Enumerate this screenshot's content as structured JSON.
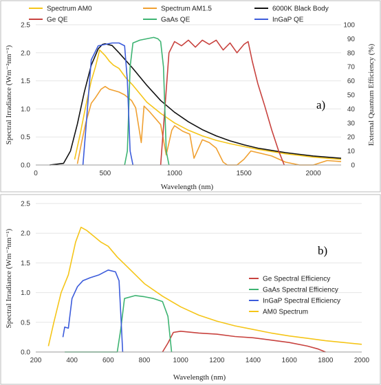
{
  "chart_data": [
    {
      "type": "line",
      "panel_label": "a)",
      "xlabel": "Wavelength  (nm)",
      "ylabel": "Spectral  Irradiance  (Wm⁻²nm⁻¹)",
      "ylabel_right": "External  Quantum  Efficiency  (%)",
      "xlim": [
        0,
        2200
      ],
      "ylim": [
        0,
        2.5
      ],
      "ylim_right": [
        0,
        100
      ],
      "x_ticks": [
        "0",
        "500",
        "1000",
        "1500",
        "2000"
      ],
      "y_ticks": [
        "0.0",
        "0.5",
        "1.0",
        "1.5",
        "2.0",
        "2.5"
      ],
      "y_ticks_right": [
        "0",
        "10",
        "20",
        "30",
        "40",
        "50",
        "60",
        "70",
        "80",
        "90",
        "100"
      ],
      "legend_position": "top",
      "series": [
        {
          "name": "Spectrum AM0",
          "color": "#f5c518",
          "axis": "left",
          "x": [
            280,
            320,
            360,
            400,
            430,
            460,
            480,
            500,
            530,
            560,
            600,
            650,
            700,
            800,
            900,
            1000,
            1100,
            1200,
            1300,
            1400,
            1500,
            1600,
            1700,
            1800,
            1900,
            2000,
            2100,
            2200
          ],
          "y": [
            0.1,
            0.55,
            1.05,
            1.5,
            1.75,
            2.05,
            2.0,
            1.95,
            1.85,
            1.78,
            1.72,
            1.55,
            1.42,
            1.12,
            0.92,
            0.75,
            0.62,
            0.52,
            0.44,
            0.38,
            0.33,
            0.28,
            0.24,
            0.2,
            0.17,
            0.14,
            0.12,
            0.1
          ]
        },
        {
          "name": "Spectrum AM1.5",
          "color": "#f0a030",
          "axis": "left",
          "x": [
            300,
            330,
            360,
            400,
            430,
            470,
            500,
            530,
            560,
            600,
            640,
            690,
            720,
            760,
            780,
            820,
            900,
            940,
            980,
            1000,
            1060,
            1110,
            1140,
            1200,
            1250,
            1300,
            1350,
            1380,
            1450,
            1500,
            1550,
            1600,
            1700,
            1800,
            1900,
            2000,
            2100,
            2200
          ],
          "y": [
            0.02,
            0.4,
            0.75,
            1.1,
            1.2,
            1.35,
            1.4,
            1.35,
            1.33,
            1.3,
            1.25,
            1.15,
            1.02,
            0.4,
            1.05,
            0.95,
            0.72,
            0.18,
            0.62,
            0.7,
            0.6,
            0.55,
            0.12,
            0.45,
            0.4,
            0.3,
            0.05,
            0.0,
            0.0,
            0.1,
            0.25,
            0.22,
            0.16,
            0.05,
            0.0,
            0.0,
            0.08,
            0.06
          ]
        },
        {
          "name": "6000K Black Body",
          "color": "#111111",
          "axis": "left",
          "x": [
            100,
            200,
            250,
            300,
            350,
            400,
            450,
            480,
            500,
            550,
            600,
            700,
            800,
            900,
            1000,
            1100,
            1200,
            1300,
            1400,
            1500,
            1600,
            1700,
            1800,
            1900,
            2000,
            2100,
            2200
          ],
          "y": [
            0.0,
            0.03,
            0.25,
            0.73,
            1.3,
            1.78,
            2.07,
            2.15,
            2.16,
            2.13,
            2.0,
            1.72,
            1.42,
            1.15,
            0.94,
            0.77,
            0.63,
            0.52,
            0.43,
            0.36,
            0.3,
            0.26,
            0.22,
            0.19,
            0.16,
            0.14,
            0.12
          ]
        },
        {
          "name": "Ge QE",
          "color": "#c8423e",
          "axis": "right",
          "x": [
            900,
            930,
            960,
            1000,
            1050,
            1100,
            1150,
            1200,
            1250,
            1300,
            1350,
            1400,
            1450,
            1500,
            1530,
            1560,
            1600,
            1650,
            1700,
            1750,
            1790
          ],
          "y": [
            0,
            40,
            80,
            88,
            85,
            89,
            84,
            89,
            86,
            89,
            82,
            87,
            80,
            86,
            88,
            74,
            58,
            42,
            25,
            10,
            0
          ]
        },
        {
          "name": "GaAs QE",
          "color": "#3cb371",
          "axis": "right",
          "x": [
            640,
            660,
            680,
            700,
            750,
            800,
            850,
            880,
            900,
            920,
            940,
            960
          ],
          "y": [
            0,
            10,
            70,
            87,
            89,
            90,
            91,
            90,
            88,
            70,
            10,
            0
          ]
        },
        {
          "name": "InGaP QE",
          "color": "#3b5bdb",
          "axis": "right",
          "x": [
            340,
            360,
            400,
            450,
            500,
            550,
            600,
            640,
            660,
            680,
            700
          ],
          "y": [
            0,
            25,
            75,
            85,
            86,
            87,
            87,
            85,
            60,
            10,
            0
          ]
        }
      ]
    },
    {
      "type": "line",
      "panel_label": "b)",
      "xlabel": "Wavelength  (nm)",
      "ylabel": "Spectral  Irradiance  (Wm⁻²nm⁻¹)",
      "xlim": [
        200,
        2000
      ],
      "ylim": [
        0,
        2.5
      ],
      "x_ticks": [
        "200",
        "400",
        "600",
        "800",
        "1000",
        "1200",
        "1400",
        "1600",
        "1800",
        "2000"
      ],
      "y_ticks": [
        "0.0",
        "0.5",
        "1.0",
        "1.5",
        "2.0",
        "2.5"
      ],
      "legend_position": "right",
      "series": [
        {
          "name": "Ge Spectral Efficiency",
          "color": "#c8423e",
          "x": [
            900,
            930,
            960,
            1000,
            1100,
            1200,
            1300,
            1400,
            1500,
            1600,
            1700,
            1760,
            1800
          ],
          "y": [
            0.0,
            0.15,
            0.33,
            0.35,
            0.32,
            0.3,
            0.26,
            0.24,
            0.2,
            0.16,
            0.1,
            0.05,
            0.0
          ]
        },
        {
          "name": "GaAs Spectral Efficiency",
          "color": "#3cb371",
          "x": [
            360,
            500,
            650,
            670,
            690,
            750,
            800,
            850,
            900,
            930,
            950
          ],
          "y": [
            0.0,
            0.0,
            0.0,
            0.4,
            0.9,
            0.95,
            0.93,
            0.9,
            0.85,
            0.6,
            0.0
          ]
        },
        {
          "name": "InGaP Spectral Efficiency",
          "color": "#3b5bdb",
          "x": [
            350,
            360,
            380,
            400,
            430,
            460,
            500,
            550,
            600,
            640,
            660,
            670,
            680
          ],
          "y": [
            0.25,
            0.42,
            0.4,
            0.9,
            1.1,
            1.2,
            1.25,
            1.3,
            1.38,
            1.35,
            1.2,
            0.6,
            0.0
          ]
        },
        {
          "name": "AM0 Spectrum",
          "color": "#f5c518",
          "x": [
            270,
            300,
            340,
            380,
            420,
            450,
            480,
            520,
            560,
            600,
            650,
            700,
            800,
            900,
            1000,
            1100,
            1200,
            1300,
            1400,
            1500,
            1600,
            1700,
            1800,
            1900,
            2000
          ],
          "y": [
            0.1,
            0.5,
            1.0,
            1.3,
            1.85,
            2.1,
            2.05,
            1.95,
            1.85,
            1.78,
            1.6,
            1.45,
            1.15,
            0.94,
            0.76,
            0.62,
            0.52,
            0.44,
            0.38,
            0.32,
            0.27,
            0.23,
            0.19,
            0.16,
            0.13
          ]
        }
      ]
    }
  ]
}
